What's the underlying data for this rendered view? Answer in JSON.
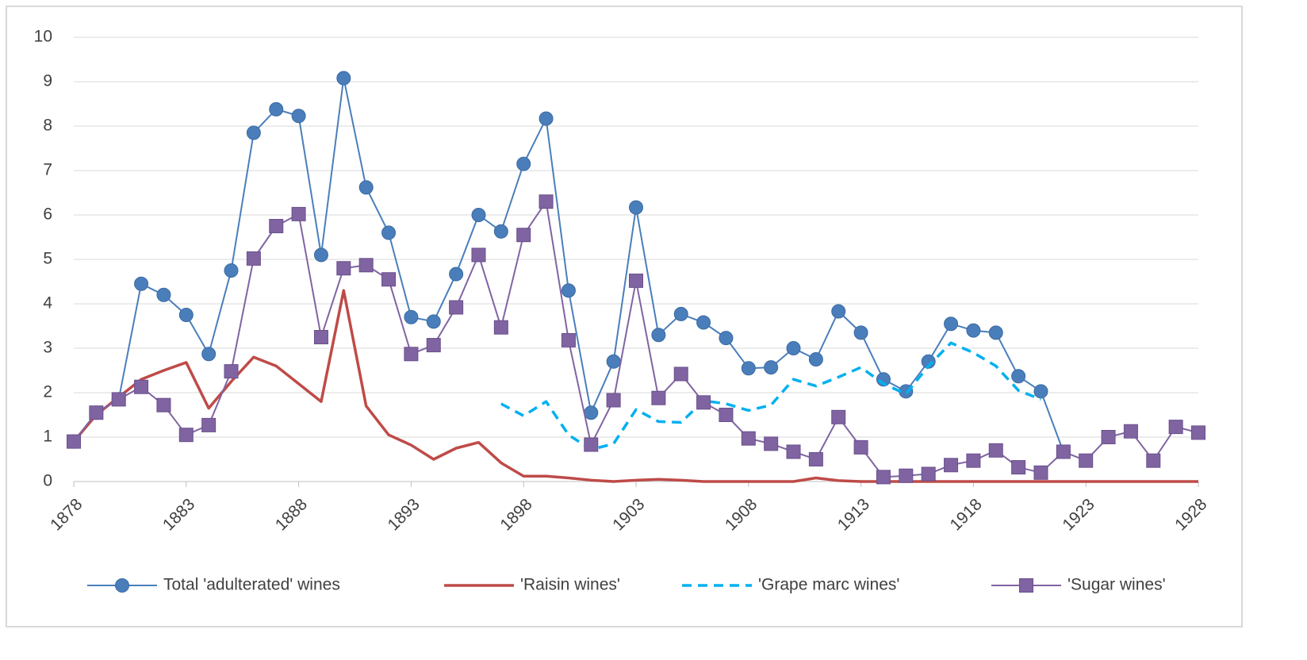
{
  "chart_data": {
    "type": "line",
    "x": [
      1878,
      1879,
      1880,
      1881,
      1882,
      1883,
      1884,
      1885,
      1886,
      1887,
      1888,
      1889,
      1890,
      1891,
      1892,
      1893,
      1894,
      1895,
      1896,
      1897,
      1898,
      1899,
      1900,
      1901,
      1902,
      1903,
      1904,
      1905,
      1906,
      1907,
      1908,
      1909,
      1910,
      1911,
      1912,
      1913,
      1914,
      1915,
      1916,
      1917,
      1918,
      1919,
      1920,
      1921,
      1922,
      1923,
      1924,
      1925,
      1926,
      1927,
      1928
    ],
    "xlim": [
      1878,
      1928
    ],
    "xticks": [
      1878,
      1883,
      1888,
      1893,
      1898,
      1903,
      1908,
      1913,
      1918,
      1923,
      1928
    ],
    "ylim": [
      0,
      10
    ],
    "yticks": [
      0,
      1,
      2,
      3,
      4,
      5,
      6,
      7,
      8,
      9,
      10
    ],
    "grid": true,
    "legend": "bottom",
    "series": [
      {
        "name": "Total 'adulterated' wines",
        "color": "#4a7ebb",
        "marker": "circle",
        "dash": false,
        "values": [
          0.9,
          1.55,
          1.85,
          4.45,
          4.2,
          3.75,
          2.87,
          4.75,
          7.85,
          8.38,
          8.23,
          5.1,
          9.08,
          6.62,
          5.6,
          3.7,
          3.6,
          4.67,
          6.0,
          5.63,
          7.15,
          8.17,
          4.3,
          1.55,
          2.7,
          6.17,
          3.3,
          3.77,
          3.58,
          3.23,
          2.55,
          2.57,
          3.0,
          2.75,
          3.83,
          3.35,
          2.3,
          2.03,
          2.7,
          3.55,
          3.4,
          3.35,
          2.37,
          2.03,
          0.67,
          null,
          null,
          null,
          null,
          null,
          null
        ]
      },
      {
        "name": "'Raisin wines'",
        "color": "#be4b48",
        "marker": "none",
        "dash": false,
        "values": [
          0.9,
          1.5,
          1.9,
          2.3,
          2.5,
          2.68,
          1.65,
          2.25,
          2.8,
          2.6,
          2.2,
          1.8,
          4.3,
          1.7,
          1.05,
          0.82,
          0.5,
          0.75,
          0.88,
          0.42,
          0.12,
          0.12,
          0.08,
          0.03,
          0.0,
          0.03,
          0.05,
          0.03,
          0,
          0,
          0,
          0,
          0,
          0.08,
          0.02,
          0,
          0,
          0,
          0,
          0,
          0,
          0,
          0,
          0,
          0,
          0,
          0,
          0,
          0,
          0,
          0
        ]
      },
      {
        "name": "'Grape marc wines'",
        "color": "#00b0f0",
        "marker": "none",
        "dash": true,
        "values": [
          null,
          null,
          null,
          null,
          null,
          null,
          null,
          null,
          null,
          null,
          null,
          null,
          null,
          null,
          null,
          null,
          null,
          null,
          null,
          1.75,
          1.48,
          1.8,
          1.05,
          0.72,
          0.85,
          1.62,
          1.35,
          1.33,
          1.82,
          1.75,
          1.6,
          1.72,
          2.3,
          2.15,
          2.35,
          2.57,
          2.2,
          1.97,
          2.6,
          3.12,
          2.9,
          2.6,
          2.05,
          1.85,
          null,
          null,
          null,
          null,
          null,
          null,
          null
        ]
      },
      {
        "name": "'Sugar wines'",
        "color": "#8064a2",
        "marker": "square",
        "dash": false,
        "values": [
          0.9,
          1.55,
          1.85,
          2.13,
          1.72,
          1.05,
          1.27,
          2.48,
          5.02,
          5.75,
          6.02,
          3.25,
          4.8,
          4.87,
          4.55,
          2.87,
          3.07,
          3.92,
          5.1,
          3.47,
          5.55,
          6.3,
          3.18,
          0.83,
          1.83,
          4.52,
          1.88,
          2.42,
          1.78,
          1.5,
          0.97,
          0.85,
          0.67,
          0.5,
          1.45,
          0.77,
          0.1,
          0.13,
          0.17,
          0.37,
          0.47,
          0.7,
          0.32,
          0.2,
          0.67,
          0.47,
          1.0,
          1.13,
          0.47,
          1.23,
          1.1
        ]
      }
    ]
  }
}
